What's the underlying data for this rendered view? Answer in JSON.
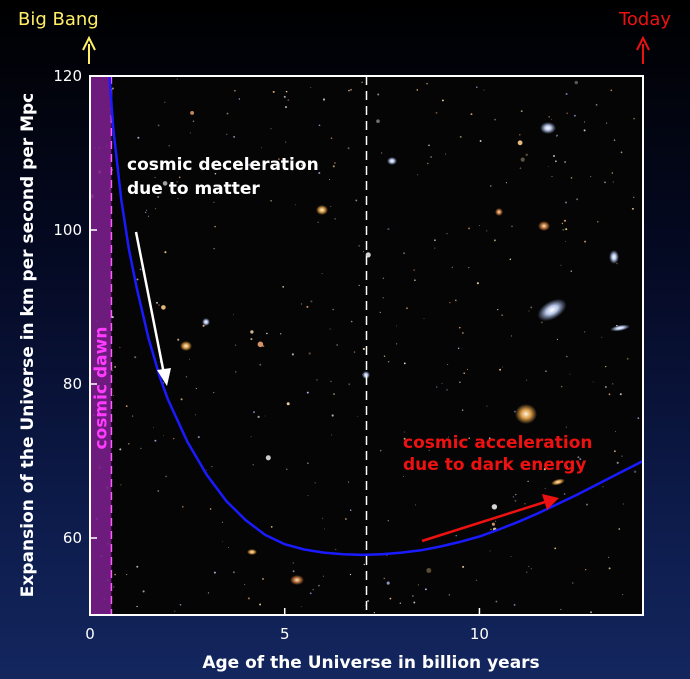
{
  "chart_data": {
    "type": "line",
    "title": "",
    "xlabel": "Age of the Universe in billion years",
    "ylabel": "Expansion of the Universe in km per second per Mpc",
    "xlim": [
      0,
      14.2
    ],
    "ylim": [
      50,
      120
    ],
    "x_ticks": [
      0,
      5,
      10
    ],
    "y_ticks": [
      60,
      80,
      100,
      120
    ],
    "grid": false,
    "series": [
      {
        "color": "#1a1aff",
        "x": [
          0.5,
          0.6,
          0.8,
          1.0,
          1.2,
          1.5,
          1.8,
          2.0,
          2.5,
          3.0,
          3.5,
          4.0,
          4.5,
          5.0,
          5.5,
          6.0,
          6.5,
          7.0,
          7.5,
          8.0,
          8.5,
          9.0,
          9.5,
          10.0,
          10.5,
          11.0,
          11.5,
          12.0,
          12.5,
          13.0,
          13.5,
          14.2
        ],
        "y": [
          120,
          113,
          104,
          97.5,
          92.5,
          86,
          80.8,
          78,
          72.5,
          68.2,
          64.8,
          62.3,
          60.4,
          59.2,
          58.5,
          58.1,
          57.9,
          57.8,
          57.9,
          58.1,
          58.4,
          58.9,
          59.5,
          60.2,
          61.1,
          62.1,
          63.2,
          64.4,
          65.6,
          66.9,
          68.2,
          70.0
        ]
      }
    ],
    "marker_x": 7.1,
    "cosmic_dawn_band": [
      0,
      0.55
    ],
    "annotations": {
      "deceleration": [
        "cosmic deceleration",
        "due to matter"
      ],
      "acceleration": [
        "cosmic acceleration",
        "due to dark energy"
      ],
      "cosmic_dawn": "cosmic dawn",
      "big_bang": "Big Bang",
      "today": "Today"
    },
    "colors": {
      "deceleration": "#ffffff",
      "acceleration": "#ee1111",
      "cosmic_dawn_band": "#7a1e8c",
      "cosmic_dawn_text": "#ff3cff",
      "big_bang": "#ffee66",
      "today": "#ee1111",
      "curve": "#1a1aff"
    }
  }
}
